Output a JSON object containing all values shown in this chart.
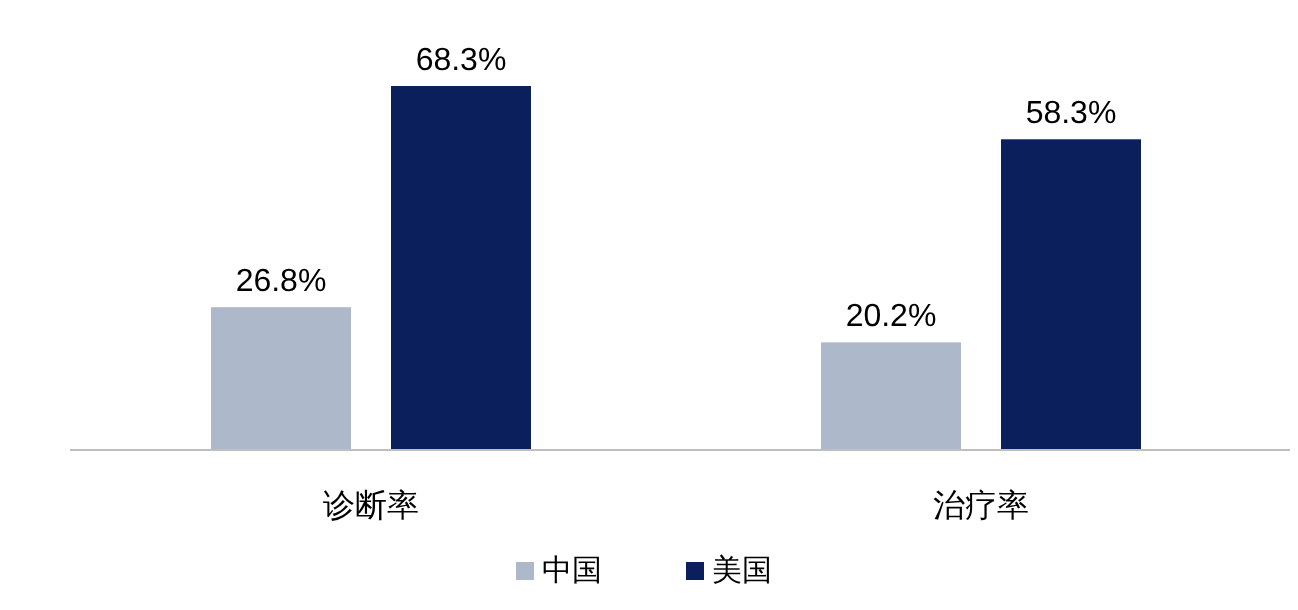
{
  "chart_data": {
    "type": "bar",
    "categories": [
      "诊断率",
      "治疗率"
    ],
    "series": [
      {
        "name": "中国",
        "color": "#adb9ca",
        "values": [
          26.8,
          20.2
        ],
        "value_labels": [
          "26.8%",
          "20.2%"
        ]
      },
      {
        "name": "美国",
        "color": "#0b1f5c",
        "values": [
          68.3,
          58.3
        ],
        "value_labels": [
          "68.3%",
          "58.3%"
        ]
      }
    ],
    "legend": "bottom"
  }
}
